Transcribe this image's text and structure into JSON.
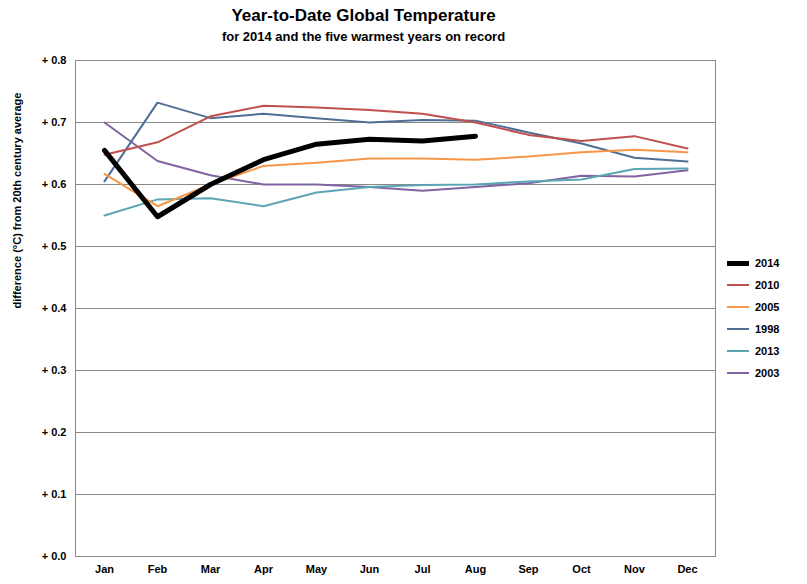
{
  "chart_data": {
    "type": "line",
    "title": "Year-to-Date Global Temperature",
    "subtitle": "for 2014 and the five warmest years on record",
    "y_label": "difference (°C) from 20th century average",
    "categories": [
      "Jan",
      "Feb",
      "Mar",
      "Apr",
      "May",
      "Jun",
      "Jul",
      "Aug",
      "Sep",
      "Oct",
      "Nov",
      "Dec"
    ],
    "series": [
      {
        "name": "2014",
        "color": "#000000",
        "line_style": "thick",
        "values": [
          0.655,
          0.548,
          0.6,
          0.64,
          0.665,
          0.673,
          0.67,
          0.678,
          null,
          null,
          null,
          null
        ]
      },
      {
        "name": "2010",
        "color": "#c0504d",
        "line_style": "solid",
        "values": [
          0.648,
          0.668,
          0.71,
          0.727,
          0.724,
          0.72,
          0.714,
          0.7,
          0.68,
          0.67,
          0.678,
          0.658
        ]
      },
      {
        "name": "2005",
        "color": "#f79646",
        "line_style": "solid",
        "values": [
          0.617,
          0.565,
          0.6,
          0.63,
          0.635,
          0.642,
          0.642,
          0.64,
          0.645,
          0.652,
          0.656,
          0.652
        ]
      },
      {
        "name": "1998",
        "color": "#4f6e96",
        "line_style": "solid",
        "values": [
          0.605,
          0.732,
          0.707,
          0.714,
          0.707,
          0.7,
          0.704,
          0.703,
          0.684,
          0.666,
          0.643,
          0.637
        ]
      },
      {
        "name": "2013",
        "color": "#5ba5b5",
        "line_style": "solid",
        "values": [
          0.55,
          0.576,
          0.578,
          0.565,
          0.587,
          0.596,
          0.599,
          0.6,
          0.605,
          0.608,
          0.625,
          0.626
        ]
      },
      {
        "name": "2003",
        "color": "#8064a2",
        "line_style": "solid",
        "values": [
          0.7,
          0.638,
          0.615,
          0.6,
          0.6,
          0.596,
          0.59,
          0.596,
          0.602,
          0.614,
          0.613,
          0.623
        ]
      }
    ],
    "ylim": [
      0,
      0.8
    ],
    "yticks": [
      {
        "value": 0,
        "label": "+ 0.0"
      },
      {
        "value": 0.1,
        "label": "+ 0.1"
      },
      {
        "value": 0.2,
        "label": "+ 0.2"
      },
      {
        "value": 0.3,
        "label": "+ 0.3"
      },
      {
        "value": 0.4,
        "label": "+ 0.4"
      },
      {
        "value": 0.5,
        "label": "+ 0.5"
      },
      {
        "value": 0.6,
        "label": "+ 0.6"
      },
      {
        "value": 0.7,
        "label": "+ 0.7"
      },
      {
        "value": 0.8,
        "label": "+ 0.8"
      }
    ],
    "grid": true,
    "legend": "right"
  }
}
